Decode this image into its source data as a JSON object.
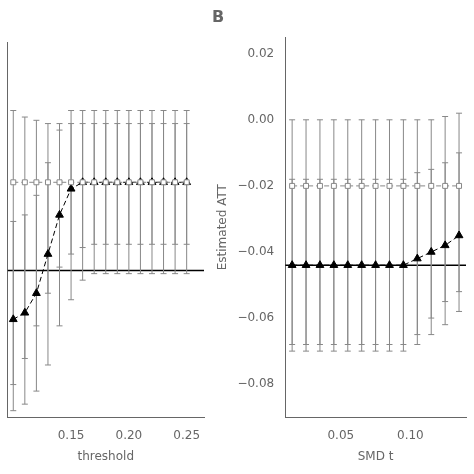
{
  "chart_data": [
    {
      "type": "line",
      "xlabel": "threshold",
      "tick_labels": "x",
      "grid": false,
      "xlim": [
        0.095,
        0.265
      ],
      "ylim": [
        -0.09,
        0.025
      ],
      "xticks": [
        0.15,
        {
          "value": 0.2,
          "label": "0.20"
        },
        0.25
      ],
      "hline": {
        "y": -0.045,
        "color": "#000000"
      },
      "x": [
        0.1,
        0.11,
        0.12,
        0.13,
        0.14,
        0.15,
        0.16,
        0.17,
        0.18,
        0.19,
        0.2,
        0.21,
        0.22,
        0.23,
        0.24,
        0.25
      ],
      "series": [
        {
          "color": "#888888",
          "marker": "square_open",
          "line_style": "dashed",
          "values": [
            -0.018,
            -0.018,
            -0.018,
            -0.018,
            -0.018,
            -0.018,
            -0.018,
            -0.018,
            -0.018,
            -0.018,
            -0.018,
            -0.018,
            -0.018,
            -0.018,
            -0.018,
            -0.018
          ],
          "error_bar": {
            "color": "#888888",
            "low": [
              -0.08,
              -0.072,
              -0.062,
              -0.052,
              -0.044,
              -0.04,
              -0.038,
              -0.037,
              -0.037,
              -0.037,
              -0.037,
              -0.037,
              -0.037,
              -0.037,
              -0.037,
              -0.037
            ],
            "high": [
              0.004,
              0.002,
              0.001,
              0.0,
              0.0,
              0.0,
              0.0,
              0.0,
              0.0,
              0.0,
              0.0,
              0.0,
              0.0,
              0.0,
              0.0,
              0.0
            ]
          }
        },
        {
          "color": "#000000",
          "marker": "triangle",
          "line_style": "dashed",
          "values": [
            -0.06,
            -0.058,
            -0.052,
            -0.04,
            -0.028,
            -0.02,
            -0.018,
            -0.018,
            -0.018,
            -0.018,
            -0.018,
            -0.018,
            -0.018,
            -0.018,
            -0.018,
            -0.018
          ],
          "error_bar": {
            "color": "#888888",
            "low": [
              -0.088,
              -0.086,
              -0.082,
              -0.074,
              -0.062,
              -0.054,
              -0.048,
              -0.046,
              -0.046,
              -0.046,
              -0.046,
              -0.046,
              -0.046,
              -0.046,
              -0.046,
              -0.046
            ],
            "high": [
              -0.03,
              -0.028,
              -0.022,
              -0.012,
              -0.002,
              0.004,
              0.004,
              0.004,
              0.004,
              0.004,
              0.004,
              0.004,
              0.004,
              0.004,
              0.004,
              0.004
            ]
          }
        }
      ]
    },
    {
      "type": "line",
      "title": "B",
      "xlabel": "SMD t",
      "ylabel": "Estimated ATT",
      "grid": false,
      "xlim": [
        0.01,
        0.14
      ],
      "ylim": [
        -0.09,
        0.025
      ],
      "xticks": [
        0.05,
        {
          "value": 0.1,
          "label": "0.10"
        }
      ],
      "yticks": [
        0.02,
        {
          "value": 0.0,
          "label": "0.00"
        },
        {
          "value": -0.02,
          "label": "−0.02"
        },
        {
          "value": -0.04,
          "label": "−0.04"
        },
        {
          "value": -0.06,
          "label": "−0.06"
        },
        {
          "value": -0.08,
          "label": "−0.08"
        }
      ],
      "hline": {
        "y": -0.044,
        "color": "#000000"
      },
      "x": [
        0.015,
        0.025,
        0.035,
        0.045,
        0.055,
        0.065,
        0.075,
        0.085,
        0.095,
        0.105,
        0.115,
        0.125,
        0.135
      ],
      "series": [
        {
          "color": "#888888",
          "marker": "square_open",
          "line_style": "dashed",
          "values": [
            -0.02,
            -0.02,
            -0.02,
            -0.02,
            -0.02,
            -0.02,
            -0.02,
            -0.02,
            -0.02,
            -0.02,
            -0.02,
            -0.02,
            -0.02
          ],
          "error_bar": {
            "color": "#888888",
            "low": [
              -0.068,
              -0.068,
              -0.068,
              -0.068,
              -0.068,
              -0.068,
              -0.068,
              -0.068,
              -0.068,
              -0.065,
              -0.06,
              -0.055,
              -0.052
            ],
            "high": [
              -0.0,
              -0.0,
              -0.0,
              -0.0,
              -0.0,
              -0.0,
              -0.0,
              -0.0,
              -0.0,
              0.0,
              0.0,
              0.001,
              0.002
            ]
          }
        },
        {
          "color": "#000000",
          "marker": "triangle",
          "line_style": "dashed",
          "values": [
            -0.044,
            -0.044,
            -0.044,
            -0.044,
            -0.044,
            -0.044,
            -0.044,
            -0.044,
            -0.044,
            -0.042,
            -0.04,
            -0.038,
            -0.035
          ],
          "error_bar": {
            "color": "#888888",
            "low": [
              -0.07,
              -0.07,
              -0.07,
              -0.07,
              -0.07,
              -0.07,
              -0.07,
              -0.07,
              -0.07,
              -0.068,
              -0.065,
              -0.062,
              -0.058
            ],
            "high": [
              -0.018,
              -0.018,
              -0.018,
              -0.018,
              -0.018,
              -0.018,
              -0.018,
              -0.018,
              -0.018,
              -0.016,
              -0.015,
              -0.013,
              -0.01
            ]
          }
        }
      ]
    }
  ]
}
